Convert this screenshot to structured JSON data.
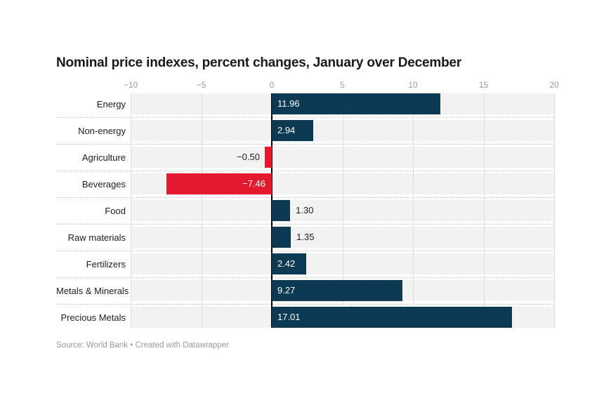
{
  "title": "Nominal price indexes, percent changes, January over December",
  "source_note": "Source: World Bank • Created with Datawrapper",
  "chart_data": {
    "type": "bar",
    "orientation": "horizontal",
    "title": "Nominal price indexes, percent changes, January over December",
    "categories": [
      "Energy",
      "Non-energy",
      "Agriculture",
      "Beverages",
      "Food",
      "Raw materials",
      "Fertilizers",
      "Metals & Minerals",
      "Precious Metals"
    ],
    "values": [
      11.96,
      2.94,
      -0.5,
      -7.46,
      1.3,
      1.35,
      2.42,
      9.27,
      17.01
    ],
    "value_labels": [
      "11.96",
      "2.94",
      "−0.50",
      "−7.46",
      "1.30",
      "1.35",
      "2.42",
      "9.27",
      "17.01"
    ],
    "xlim": [
      -10,
      20
    ],
    "xticks": [
      -10,
      -5,
      0,
      5,
      10,
      15,
      20
    ],
    "xtick_labels": [
      "−10",
      "−5",
      "0",
      "5",
      "10",
      "15",
      "20"
    ],
    "grid": true,
    "legend": "none",
    "colors": {
      "positive": "#0c3a52",
      "negative": "#e5192d",
      "row_band": "#f2f2f2",
      "gridline": "#dcdcdc",
      "zero_line": "#000000",
      "tick_label": "#9b9b9b",
      "value_inside": "#ffffff",
      "value_outside": "#1d1d1d"
    }
  }
}
